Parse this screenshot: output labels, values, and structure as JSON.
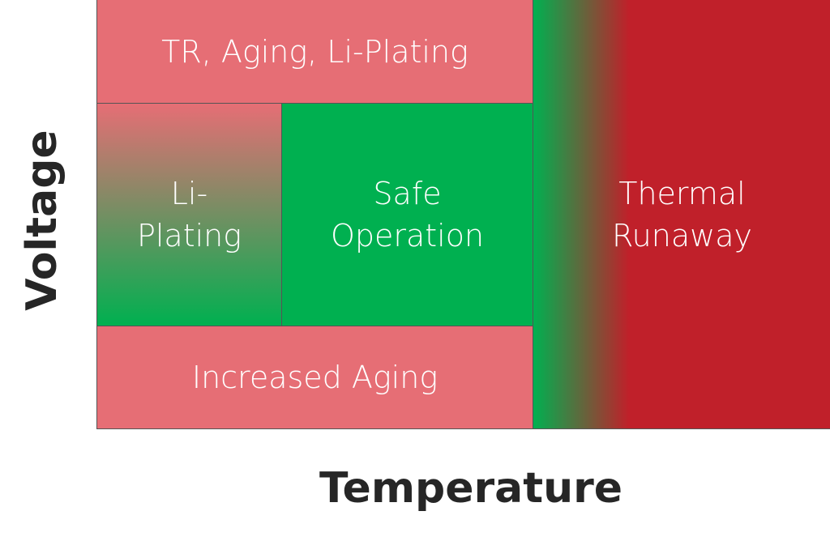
{
  "axes": {
    "y": "Voltage",
    "x": "Temperature"
  },
  "regions": {
    "top": {
      "lines": [
        "TR, Aging, Li-Plating"
      ]
    },
    "li_plating": {
      "lines": [
        "Li-",
        "Plating"
      ]
    },
    "safe": {
      "lines": [
        "Safe",
        "Operation"
      ]
    },
    "bottom": {
      "lines": [
        "Increased Aging"
      ]
    },
    "thermal": {
      "lines": [
        "Thermal",
        "Runaway"
      ]
    }
  }
}
